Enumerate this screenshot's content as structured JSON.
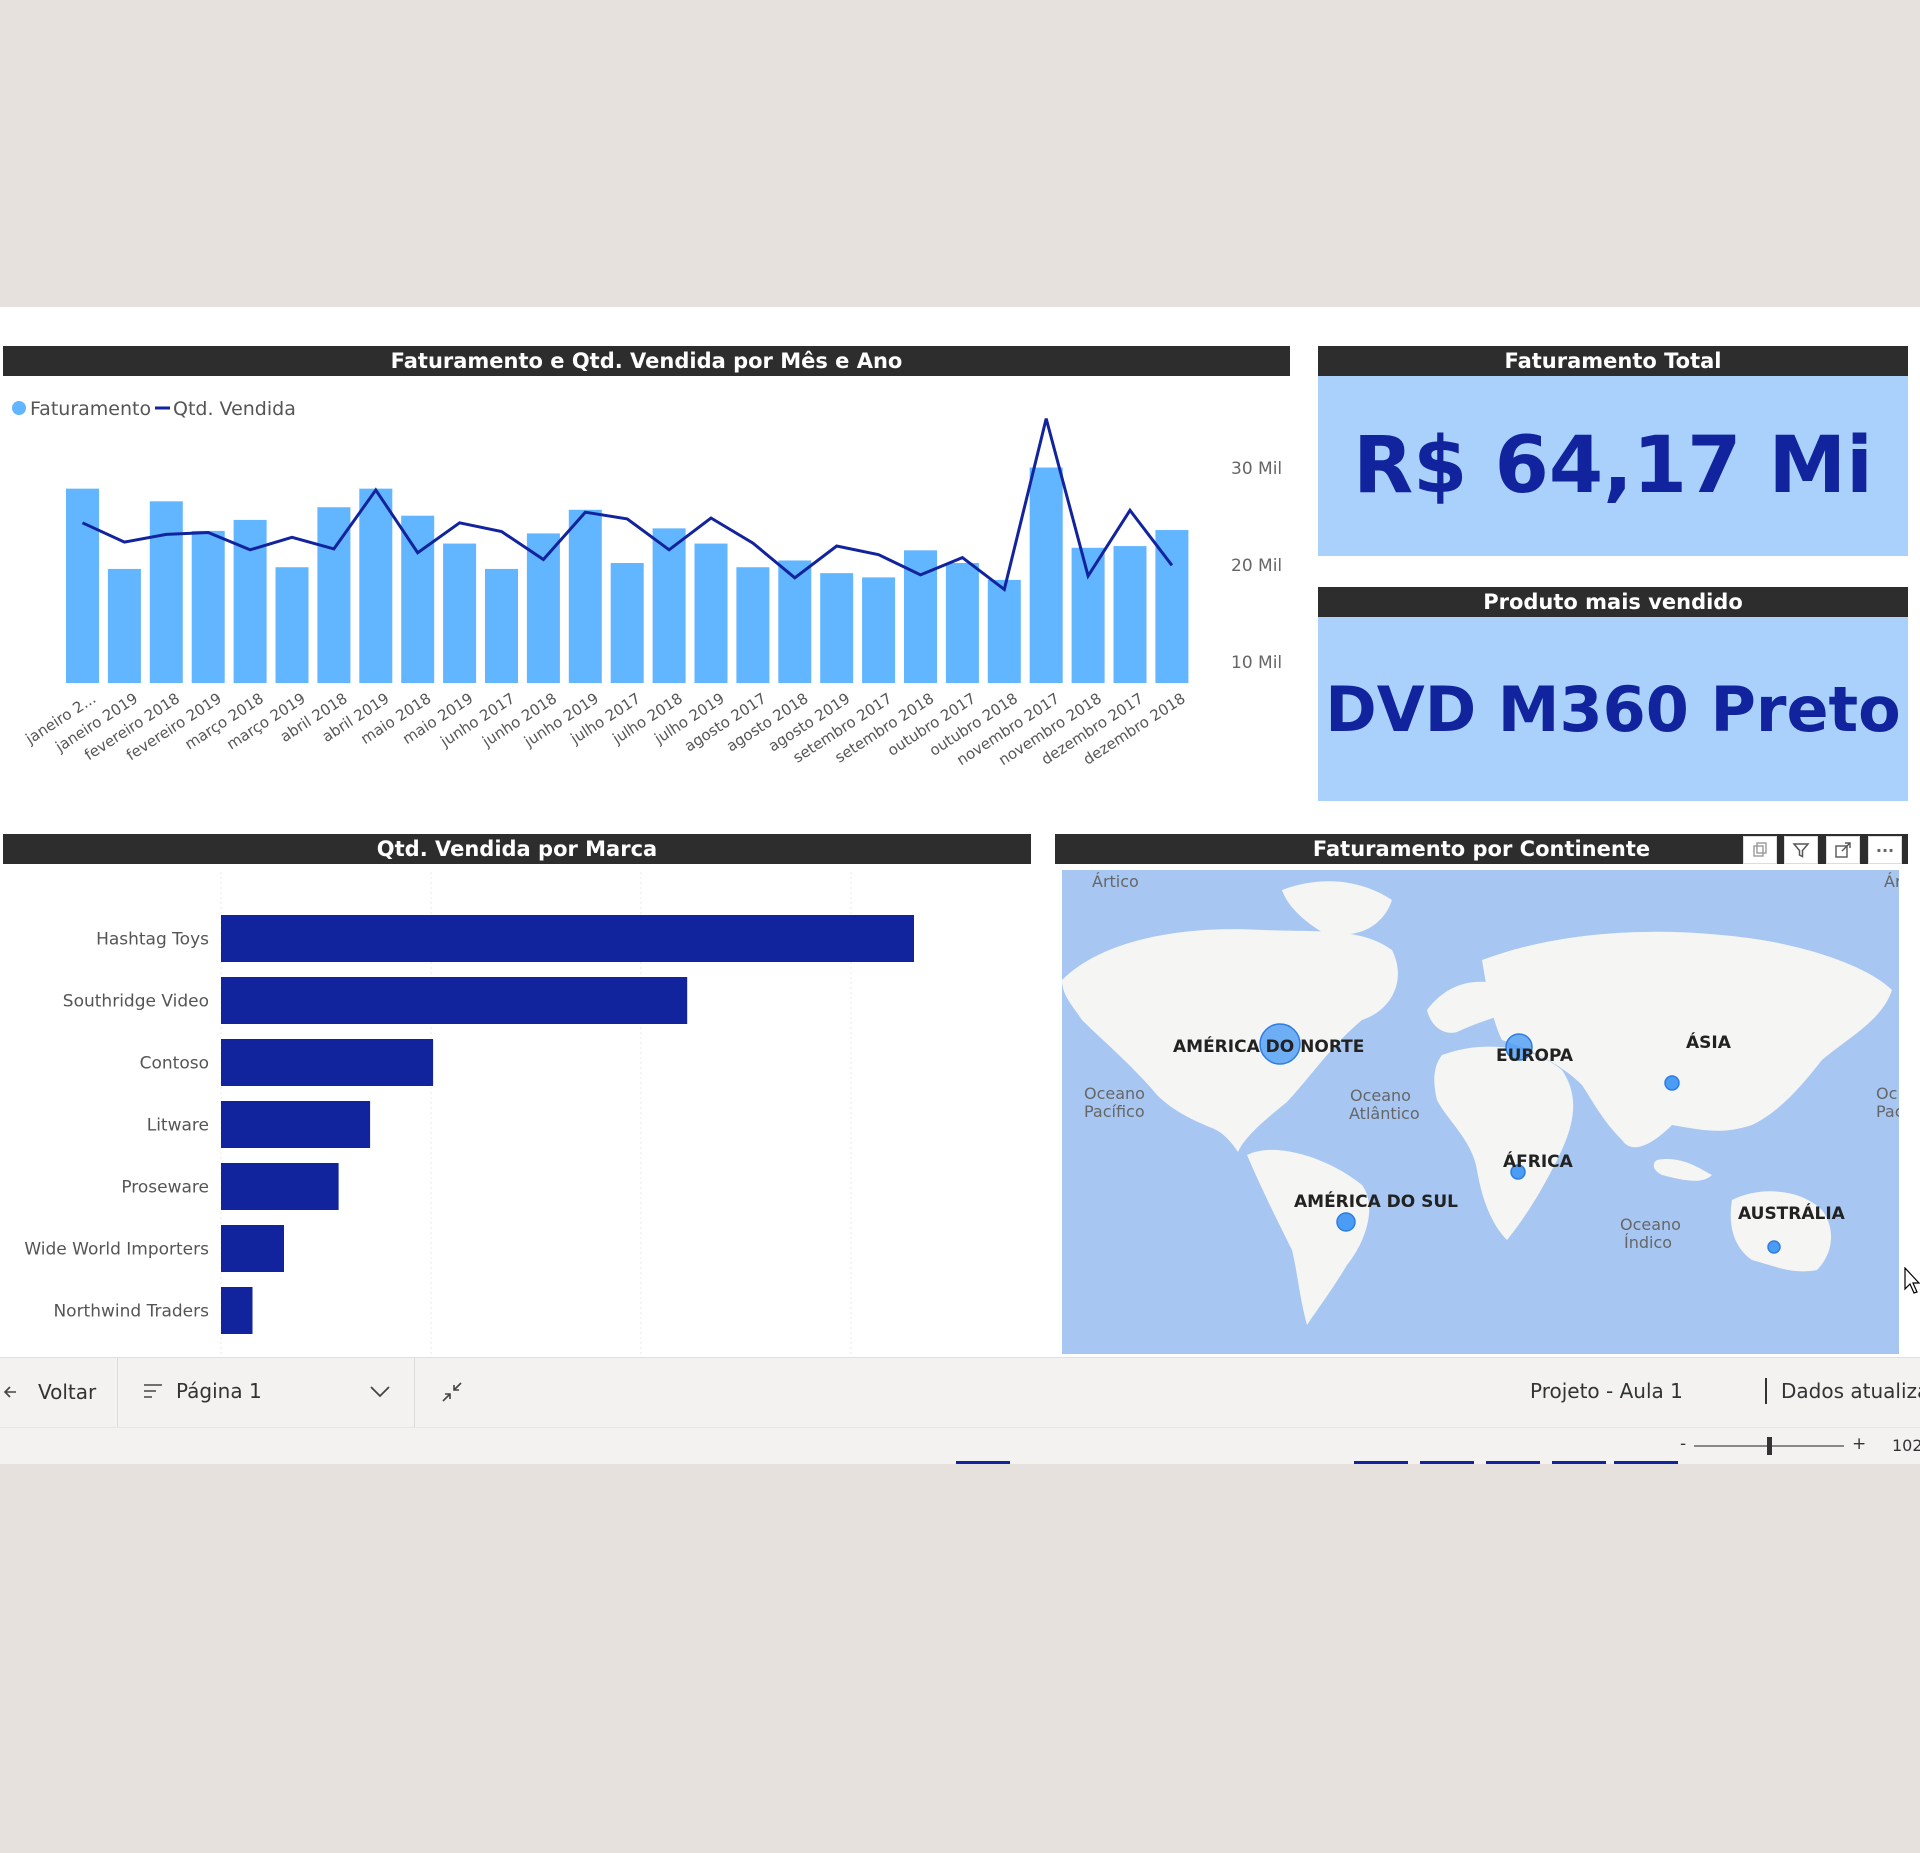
{
  "line_chart": {
    "title": "Faturamento e Qtd. Vendida por Mês e Ano",
    "legend": [
      {
        "name": "Faturamento",
        "color": "#62b5ff"
      },
      {
        "name": "Qtd. Vendida",
        "color": "#12239e"
      }
    ],
    "y_ticks": [
      "30 Mil",
      "20 Mil",
      "10 Mil"
    ]
  },
  "chart_data": [
    {
      "type": "bar",
      "title": "Faturamento e Qtd. Vendida por Mês e Ano",
      "categories": [
        "janeiro 2...",
        "janeiro 2019",
        "fevereiro 2018",
        "fevereiro 2019",
        "março 2018",
        "março 2019",
        "abril 2018",
        "abril 2019",
        "maio 2018",
        "maio 2019",
        "junho 2017",
        "junho 2018",
        "junho 2019",
        "julho 2017",
        "julho 2018",
        "julho 2019",
        "agosto 2017",
        "agosto 2018",
        "agosto 2019",
        "setembro 2017",
        "setembro 2018",
        "outubro 2017",
        "outubro 2018",
        "novembro 2017",
        "novembro 2018",
        "dezembro 2017",
        "dezembro 2018"
      ],
      "series": [
        {
          "name": "Faturamento",
          "values": [
            2.3,
            1.35,
            2.15,
            1.8,
            1.93,
            1.37,
            2.08,
            2.3,
            1.98,
            1.65,
            1.35,
            1.77,
            2.05,
            1.42,
            1.83,
            1.65,
            1.37,
            1.45,
            1.3,
            1.25,
            1.57,
            1.42,
            1.22,
            2.55,
            1.6,
            1.62,
            1.81
          ]
        },
        {
          "name": "Qtd. Vendida",
          "values": [
            16.6,
            14.6,
            15.4,
            15.6,
            13.8,
            15.1,
            13.9,
            20.0,
            13.5,
            16.6,
            15.7,
            12.8,
            17.7,
            17.0,
            13.8,
            17.1,
            14.5,
            10.9,
            14.2,
            13.3,
            11.2,
            13.0,
            9.7,
            27.4,
            11.1,
            17.9,
            12.2
          ]
        }
      ],
      "ylim": [
        0,
        30000
      ],
      "y_ticks": [
        "30 Mil",
        "20 Mil",
        "10 Mil"
      ]
    },
    {
      "type": "bar",
      "title": "Qtd. Vendida por Marca",
      "categories": [
        "Hashtag Toys",
        "Southridge Video",
        "Contoso",
        "Litware",
        "Proseware",
        "Wide World Importers",
        "Northwind Traders"
      ],
      "values": [
        3.3,
        2.22,
        1.01,
        0.71,
        0.56,
        0.3,
        0.15
      ],
      "color": "#12239e"
    }
  ],
  "kpis": {
    "total": {
      "title": "Faturamento Total",
      "value": "R$ 64,17 Mi"
    },
    "top_product": {
      "title": "Produto mais vendido",
      "value": "DVD M360 Preto"
    }
  },
  "bar_chart": {
    "title": "Qtd. Vendida por Marca"
  },
  "map": {
    "title": "Faturamento por Continente",
    "labels": [
      {
        "text": "AMÉRICA DO NORTE",
        "kind": "continent"
      },
      {
        "text": "EUROPA",
        "kind": "continent"
      },
      {
        "text": "ÁSIA",
        "kind": "continent"
      },
      {
        "text": "ÁFRICA",
        "kind": "continent"
      },
      {
        "text": "AMÉRICA DO SUL",
        "kind": "continent"
      },
      {
        "text": "AUSTRÁLIA",
        "kind": "continent"
      }
    ],
    "oceans": {
      "artic_left": "Ártico",
      "artic_right": "Ár",
      "pacific_left": [
        "Oceano",
        "Pacífico"
      ],
      "atlantic": [
        "Oceano",
        "Atlântico"
      ],
      "indian": [
        "Oceano",
        "Índico"
      ],
      "pacific_right": [
        "Oc",
        "Pac"
      ]
    }
  },
  "bottom_bar": {
    "back": "Voltar",
    "page": "Página 1",
    "project": "Projeto - Aula 1",
    "updated": "Dados atualiza",
    "zoom_minus": "-",
    "zoom_plus": "+",
    "zoom_value": "102"
  }
}
